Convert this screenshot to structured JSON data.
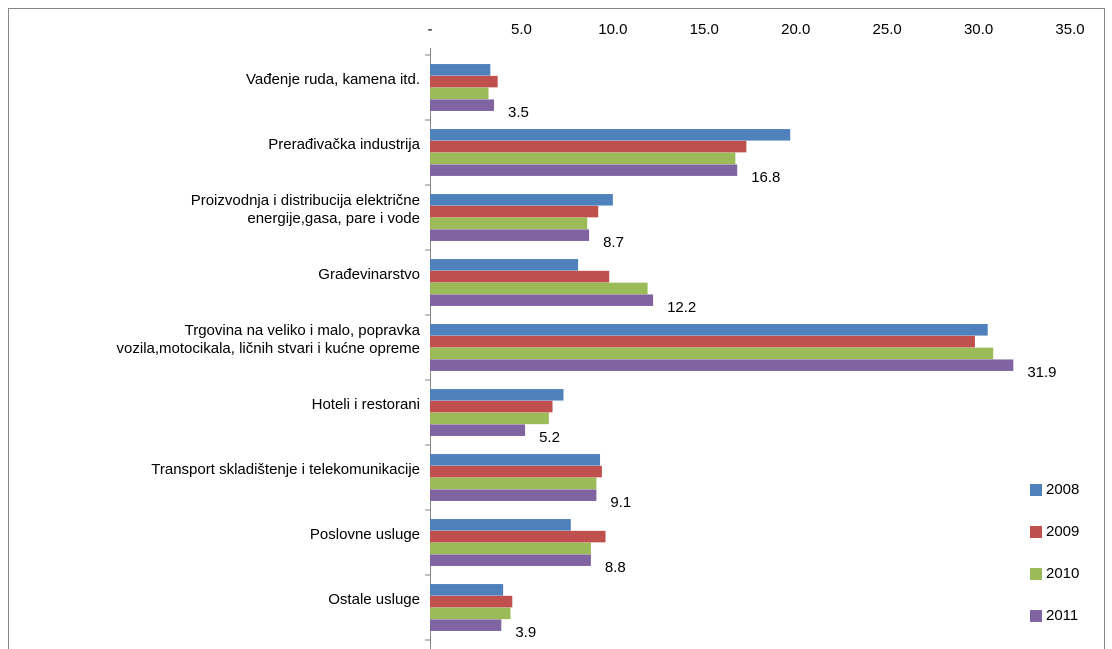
{
  "chart_data": {
    "type": "hbar",
    "categories": [
      "Vađenje ruda, kamena itd.",
      "Prerađivačka industrija",
      "Proizvodnja i distribucija električne\nenergije,gasa, pare i vode",
      "Građevinarstvo",
      "Trgovina na veliko i malo, popravka\nvozila,motocikala, ličnih stvari i kućne opreme",
      "Hoteli i restorani",
      "Transport skladištenje i telekomunikacije",
      "Poslovne usluge",
      "Ostale usluge"
    ],
    "series": [
      {
        "name": "2008",
        "color": "#4f81bd",
        "values": [
          3.3,
          19.7,
          10.0,
          8.1,
          30.5,
          7.3,
          9.3,
          7.7,
          4.0
        ]
      },
      {
        "name": "2009",
        "color": "#c0504d",
        "values": [
          3.7,
          17.3,
          9.2,
          9.8,
          29.8,
          6.7,
          9.4,
          9.6,
          4.5
        ]
      },
      {
        "name": "2010",
        "color": "#9bbb59",
        "values": [
          3.2,
          16.7,
          8.6,
          11.9,
          30.8,
          6.5,
          9.1,
          8.8,
          4.4
        ]
      },
      {
        "name": "2011",
        "color": "#8064a2",
        "values": [
          3.5,
          16.8,
          8.7,
          12.2,
          31.9,
          5.2,
          9.1,
          8.8,
          3.9
        ],
        "data_labels": true
      }
    ],
    "xlim": [
      0,
      35
    ],
    "xticks": [
      {
        "value": 0,
        "label": "-"
      },
      {
        "value": 5,
        "label": "5.0"
      },
      {
        "value": 10,
        "label": "10.0"
      },
      {
        "value": 15,
        "label": "15.0"
      },
      {
        "value": 20,
        "label": "20.0"
      },
      {
        "value": 25,
        "label": "25.0"
      },
      {
        "value": 30,
        "label": "30.0"
      },
      {
        "value": 35,
        "label": "35.0"
      }
    ],
    "grid": false,
    "legend": "right"
  }
}
